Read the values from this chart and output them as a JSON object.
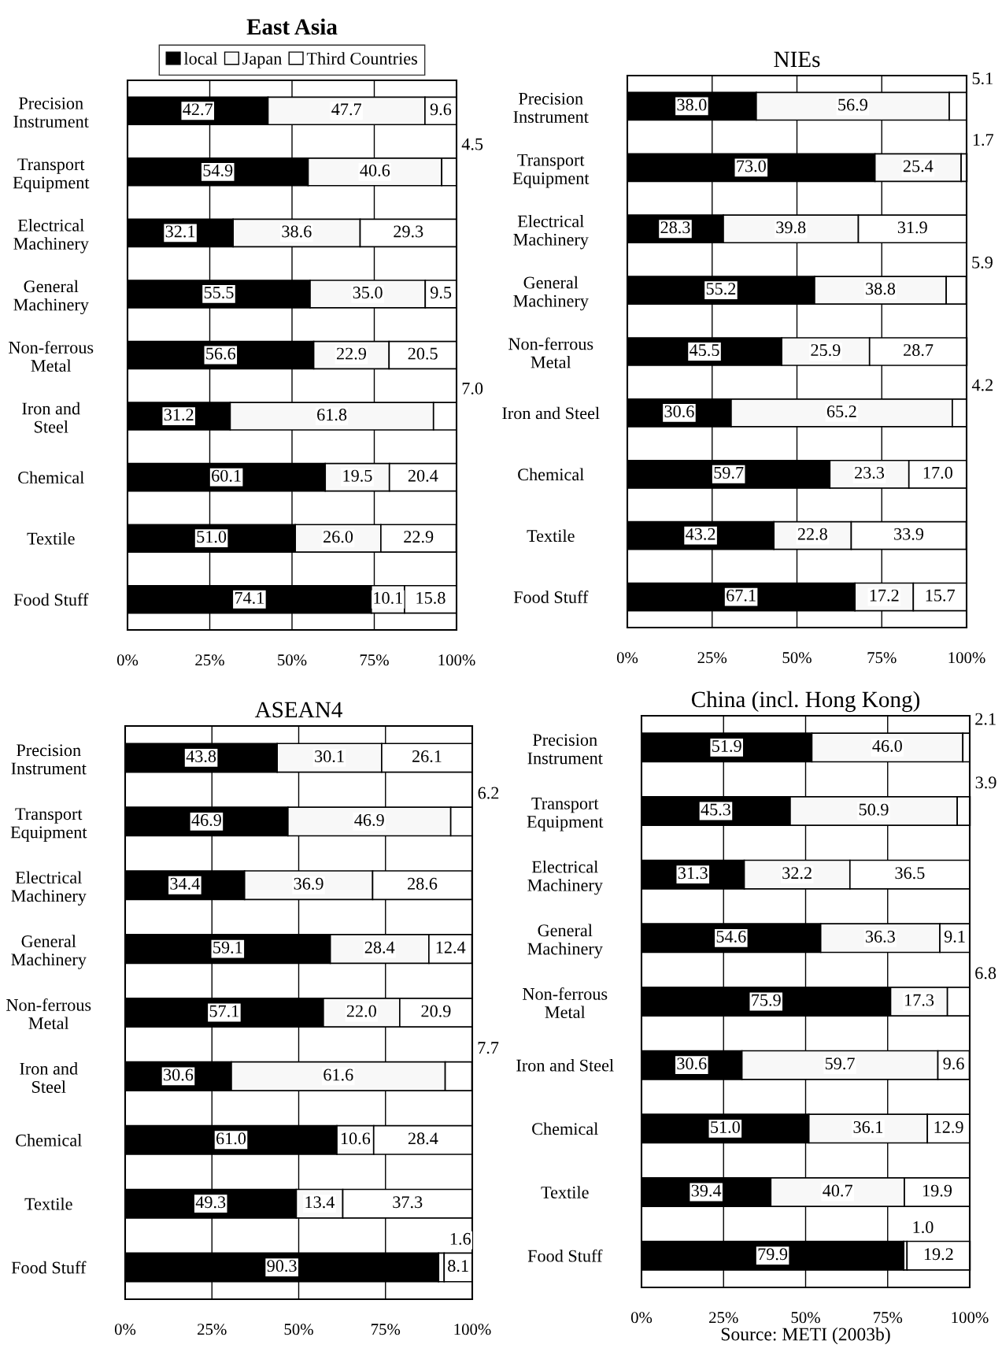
{
  "chart_data": [
    {
      "type": "bar",
      "orientation": "horizontal",
      "stacked": true,
      "title": "East Asia",
      "grid": "x",
      "legend": "top",
      "tick_labels": "xy",
      "categories": [
        "Precision\nInstrument",
        "Transport\nEquipment",
        "Electrical\nMachinery",
        "General\nMachinery",
        "Non-ferrous\nMetal",
        "Iron and\nSteel",
        "Chemical",
        "Textile",
        "Food Stuff"
      ],
      "series": [
        {
          "name": "local",
          "color": "#000000",
          "values": [
            42.7,
            54.9,
            32.1,
            55.5,
            56.6,
            31.2,
            60.1,
            51.0,
            74.1
          ],
          "value_labels": [
            "42.7",
            "54.9",
            "32.1",
            "55.5",
            "56.6",
            "31.2",
            "60.1",
            "51.0",
            "74.1"
          ]
        },
        {
          "name": "Japan",
          "color": "#f8f8f8",
          "values": [
            47.7,
            40.6,
            38.6,
            35.0,
            22.9,
            61.8,
            19.5,
            26.0,
            10.1
          ],
          "value_labels": [
            "47.7",
            "40.6",
            "38.6",
            "35.0",
            "22.9",
            "61.8",
            "19.5",
            "26.0",
            "10.1"
          ]
        },
        {
          "name": "Third Countries",
          "color": "#ffffff",
          "values": [
            9.6,
            4.5,
            29.3,
            9.5,
            20.5,
            7.0,
            20.4,
            22.9,
            15.8
          ],
          "value_labels": [
            "9.6",
            "4.5",
            "29.3",
            "9.5",
            "20.5",
            "7.0",
            "20.4",
            "22.9",
            "15.8"
          ]
        }
      ],
      "xlim": [
        0,
        100
      ],
      "xticks": [
        {
          "value": 0,
          "label": "0%"
        },
        {
          "value": 25,
          "label": "25%"
        },
        {
          "value": 50,
          "label": "50%"
        },
        {
          "value": 75,
          "label": "75%"
        },
        {
          "value": 100,
          "label": "100%"
        }
      ]
    },
    {
      "type": "bar",
      "orientation": "horizontal",
      "stacked": true,
      "title": "NIEs",
      "grid": "x",
      "categories": [
        "Precision\nInstrument",
        "Transport\nEquipment",
        "Electrical\nMachinery",
        "General\nMachinery",
        "Non-ferrous\nMetal",
        "Iron and Steel",
        "Chemical",
        "Textile",
        "Food Stuff"
      ],
      "series": [
        {
          "color": "#000000",
          "values": [
            38.0,
            73.0,
            28.3,
            55.2,
            45.5,
            30.6,
            59.7,
            43.2,
            67.1
          ],
          "value_labels": [
            "38.0",
            "73.0",
            "28.3",
            "55.2",
            "45.5",
            "30.6",
            "59.7",
            "43.2",
            "67.1"
          ]
        },
        {
          "color": "#f8f8f8",
          "values": [
            56.9,
            25.4,
            39.8,
            38.8,
            25.9,
            65.2,
            23.3,
            22.8,
            17.2
          ],
          "value_labels": [
            "56.9",
            "25.4",
            "39.8",
            "38.8",
            "25.9",
            "65.2",
            "23.3",
            "22.8",
            "17.2"
          ]
        },
        {
          "color": "#ffffff",
          "values": [
            5.1,
            1.7,
            31.9,
            5.9,
            28.7,
            4.2,
            17.0,
            33.9,
            15.7
          ],
          "value_labels": [
            "5.1",
            "1.7",
            "31.9",
            "5.9",
            "28.7",
            "4.2",
            "17.0",
            "33.9",
            "15.7"
          ]
        }
      ],
      "xlim": [
        0,
        100
      ],
      "xticks": [
        {
          "value": 0,
          "label": "0%"
        },
        {
          "value": 25,
          "label": "25%"
        },
        {
          "value": 50,
          "label": "50%"
        },
        {
          "value": 75,
          "label": "75%"
        },
        {
          "value": 100,
          "label": "100%"
        }
      ]
    },
    {
      "type": "bar",
      "orientation": "horizontal",
      "stacked": true,
      "title": "ASEAN4",
      "grid": "x",
      "categories": [
        "Precision\nInstrument",
        "Transport\nEquipment",
        "Electrical\nMachinery",
        "General\nMachinery",
        "Non-ferrous\nMetal",
        "Iron and\nSteel",
        "Chemical",
        "Textile",
        "Food Stuff"
      ],
      "series": [
        {
          "color": "#000000",
          "values": [
            43.8,
            46.9,
            34.4,
            59.1,
            57.1,
            30.6,
            61.0,
            49.3,
            90.3
          ],
          "value_labels": [
            "43.8",
            "46.9",
            "34.4",
            "59.1",
            "57.1",
            "30.6",
            "61.0",
            "49.3",
            "90.3"
          ]
        },
        {
          "color": "#f8f8f8",
          "values": [
            30.1,
            46.9,
            36.9,
            28.4,
            22.0,
            61.6,
            10.6,
            13.4,
            1.6
          ],
          "value_labels": [
            "30.1",
            "46.9",
            "36.9",
            "28.4",
            "22.0",
            "61.6",
            "10.6",
            "13.4",
            "1.6"
          ]
        },
        {
          "color": "#ffffff",
          "values": [
            26.1,
            6.2,
            28.6,
            12.4,
            20.9,
            7.7,
            28.4,
            37.3,
            8.1
          ],
          "value_labels": [
            "26.1",
            "6.2",
            "28.6",
            "12.4",
            "20.9",
            "7.7",
            "28.4",
            "37.3",
            "8.1"
          ]
        }
      ],
      "xlim": [
        0,
        100
      ],
      "xticks": [
        {
          "value": 0,
          "label": "0%"
        },
        {
          "value": 25,
          "label": "25%"
        },
        {
          "value": 50,
          "label": "50%"
        },
        {
          "value": 75,
          "label": "75%"
        },
        {
          "value": 100,
          "label": "100%"
        }
      ]
    },
    {
      "type": "bar",
      "orientation": "horizontal",
      "stacked": true,
      "title": "China (incl. Hong Kong)",
      "grid": "x",
      "annotations": [
        "Source: METI (2003b)"
      ],
      "categories": [
        "Precision\nInstrument",
        "Transport\nEquipment",
        "Electrical\nMachinery",
        "General\nMachinery",
        "Non-ferrous\nMetal",
        "Iron and Steel",
        "Chemical",
        "Textile",
        "Food Stuff"
      ],
      "series": [
        {
          "color": "#000000",
          "values": [
            51.9,
            45.3,
            31.3,
            54.6,
            75.9,
            30.6,
            51.0,
            39.4,
            79.9
          ],
          "value_labels": [
            "51.9",
            "45.3",
            "31.3",
            "54.6",
            "75.9",
            "30.6",
            "51.0",
            "39.4",
            "79.9"
          ]
        },
        {
          "color": "#f8f8f8",
          "values": [
            46.0,
            50.9,
            32.2,
            36.3,
            17.3,
            59.7,
            36.1,
            40.7,
            1.0
          ],
          "value_labels": [
            "46.0",
            "50.9",
            "32.2",
            "36.3",
            "17.3",
            "59.7",
            "36.1",
            "40.7",
            "1.0"
          ]
        },
        {
          "color": "#ffffff",
          "values": [
            2.1,
            3.9,
            36.5,
            9.1,
            6.8,
            9.6,
            12.9,
            19.9,
            19.2
          ],
          "value_labels": [
            "2.1",
            "3.9",
            "36.5",
            "9.1",
            "6.8",
            "9.6",
            "12.9",
            "19.9",
            "19.2"
          ]
        }
      ],
      "xlim": [
        0,
        100
      ],
      "xticks": [
        {
          "value": 0,
          "label": "0%"
        },
        {
          "value": 25,
          "label": "25%"
        },
        {
          "value": 50,
          "label": "50%"
        },
        {
          "value": 75,
          "label": "75%"
        },
        {
          "value": 100,
          "label": "100%"
        }
      ]
    }
  ]
}
